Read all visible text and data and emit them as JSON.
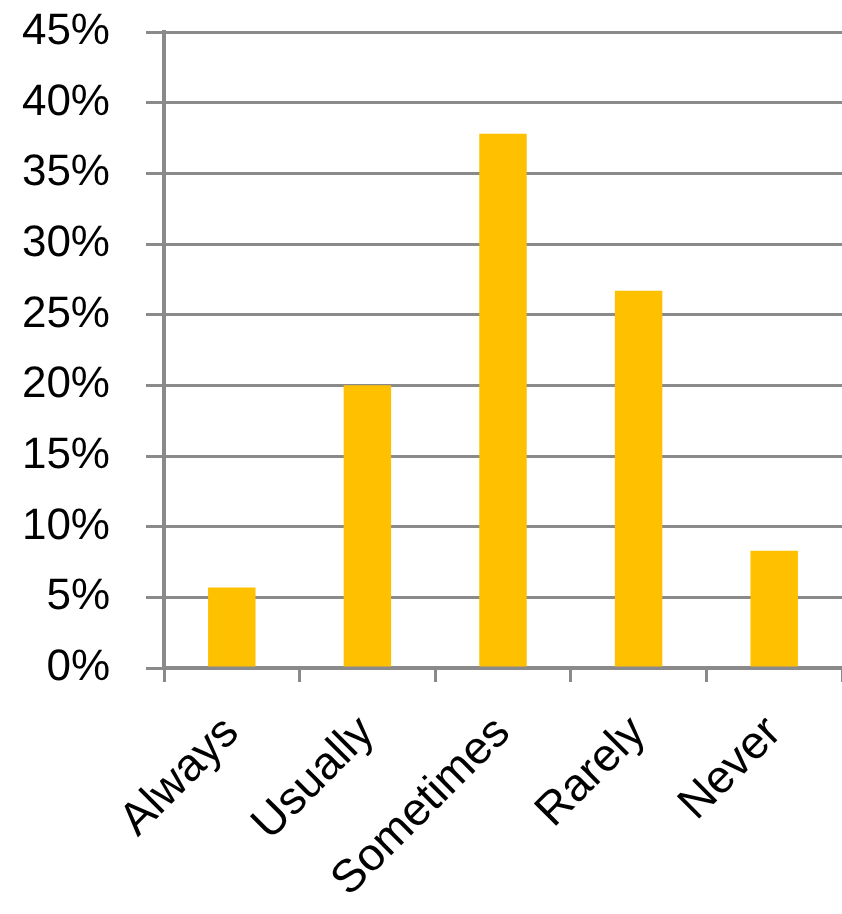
{
  "chart_data": {
    "type": "bar",
    "categories": [
      "Always",
      "Usually",
      "Sometimes",
      "Rarely",
      "Never"
    ],
    "values": [
      5.7,
      20.0,
      37.8,
      26.7,
      8.3
    ],
    "color": "#ffc000",
    "ylim": [
      0,
      45
    ],
    "yticks": [
      {
        "value": 0,
        "label": "0%"
      },
      {
        "value": 5,
        "label": "5%"
      },
      {
        "value": 10,
        "label": "10%"
      },
      {
        "value": 15,
        "label": "15%"
      },
      {
        "value": 20,
        "label": "20%"
      },
      {
        "value": 25,
        "label": "25%"
      },
      {
        "value": 30,
        "label": "30%"
      },
      {
        "value": 35,
        "label": "35%"
      },
      {
        "value": 40,
        "label": "40%"
      },
      {
        "value": 45,
        "label": "45%"
      }
    ],
    "grid": "y"
  }
}
